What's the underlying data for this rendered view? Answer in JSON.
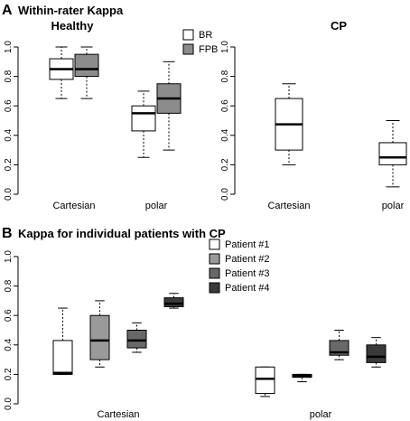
{
  "figure": {
    "panel_a": {
      "letter": "A",
      "title": "Within-rater Kappa"
    },
    "panel_b": {
      "letter": "B",
      "title": "Kappa for individual patients with CP"
    }
  },
  "chart_data": [
    {
      "type": "box",
      "title": "Healthy",
      "categories": [
        "Cartesian",
        "polar"
      ],
      "ylim": [
        0,
        1
      ],
      "yticks": [
        "0.0",
        "0.2",
        "0.4",
        "0.6",
        "0.8",
        "1.0"
      ],
      "grid": false,
      "legend_placement": "top-right",
      "series": [
        {
          "name": "BR",
          "color": "#ffffff",
          "boxes": [
            {
              "whisker_low": 0.65,
              "q1": 0.78,
              "median": 0.85,
              "q3": 0.92,
              "whisker_high": 1.0
            },
            {
              "whisker_low": 0.25,
              "q1": 0.43,
              "median": 0.55,
              "q3": 0.6,
              "whisker_high": 0.7
            }
          ]
        },
        {
          "name": "FPB",
          "color": "#8c8c8c",
          "boxes": [
            {
              "whisker_low": 0.65,
              "q1": 0.8,
              "median": 0.85,
              "q3": 0.95,
              "whisker_high": 1.0
            },
            {
              "whisker_low": 0.3,
              "q1": 0.55,
              "median": 0.65,
              "q3": 0.75,
              "whisker_high": 0.9
            }
          ]
        }
      ]
    },
    {
      "type": "box",
      "title": "CP",
      "categories": [
        "Cartesian",
        "polar"
      ],
      "ylim": [
        0,
        1
      ],
      "yticks": [
        "0.0",
        "0.2",
        "0.4",
        "0.6",
        "0.8",
        "1.0"
      ],
      "grid": false,
      "series": [
        {
          "color": "#ffffff",
          "boxes": [
            {
              "whisker_low": 0.2,
              "q1": 0.3,
              "median": 0.475,
              "q3": 0.65,
              "whisker_high": 0.75
            },
            {
              "whisker_low": 0.05,
              "q1": 0.2,
              "median": 0.25,
              "q3": 0.35,
              "whisker_high": 0.5
            }
          ]
        }
      ]
    },
    {
      "type": "box",
      "categories": [
        "Cartesian",
        "polar"
      ],
      "ylim": [
        0,
        1
      ],
      "yticks": [
        "0.0",
        "0.2",
        "0.4",
        "0.6",
        "0.8",
        "1.0"
      ],
      "grid": false,
      "legend_placement": "top-center",
      "series": [
        {
          "name": "Patient #1",
          "color": "#ffffff",
          "boxes": [
            {
              "whisker_low": 0.2,
              "q1": 0.2,
              "median": 0.21,
              "q3": 0.43,
              "whisker_high": 0.65
            },
            {
              "whisker_low": 0.05,
              "q1": 0.07,
              "median": 0.17,
              "q3": 0.25,
              "whisker_high": 0.25
            }
          ]
        },
        {
          "name": "Patient #2",
          "color": "#9a9a9a",
          "boxes": [
            {
              "whisker_low": 0.25,
              "q1": 0.3,
              "median": 0.43,
              "q3": 0.6,
              "whisker_high": 0.7
            },
            {
              "whisker_low": 0.15,
              "q1": 0.18,
              "median": 0.19,
              "q3": 0.2,
              "whisker_high": 0.2
            }
          ]
        },
        {
          "name": "Patient #3",
          "color": "#686868",
          "boxes": [
            {
              "whisker_low": 0.35,
              "q1": 0.38,
              "median": 0.43,
              "q3": 0.5,
              "whisker_high": 0.55
            },
            {
              "whisker_low": 0.3,
              "q1": 0.33,
              "median": 0.35,
              "q3": 0.43,
              "whisker_high": 0.5
            }
          ]
        },
        {
          "name": "Patient #4",
          "color": "#3a3a3a",
          "boxes": [
            {
              "whisker_low": 0.65,
              "q1": 0.66,
              "median": 0.68,
              "q3": 0.72,
              "whisker_high": 0.75
            },
            {
              "whisker_low": 0.25,
              "q1": 0.28,
              "median": 0.32,
              "q3": 0.4,
              "whisker_high": 0.45
            }
          ]
        }
      ]
    }
  ]
}
